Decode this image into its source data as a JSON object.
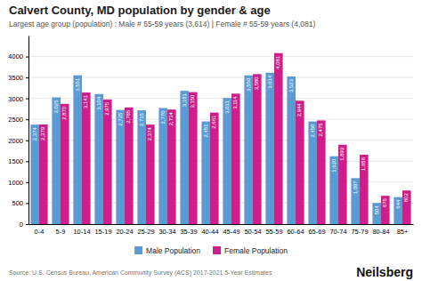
{
  "chart_data": {
    "type": "bar",
    "title": "Calvert County, MD population by gender & age",
    "subtitle": "Largest age group (population) : Male # 55-59 years (3,614) | Female # 55-59 years (4,081)",
    "annotations": [
      "Source: U.S. Census Bureau, American Community Survey (ACS) 2017-2021 5-Year Estimates",
      "Neilsberg"
    ],
    "categories": [
      "0-4",
      "5-9",
      "10-14",
      "15-19",
      "20-24",
      "25-29",
      "30-34",
      "35-39",
      "40-44",
      "45-49",
      "50-54",
      "55-59",
      "60-64",
      "65-69",
      "70-74",
      "75-79",
      "80-84",
      "85+"
    ],
    "series": [
      {
        "name": "Male Population",
        "color": "#5b9bd5",
        "values": [
          2374,
          3025,
          3551,
          3104,
          2725,
          2715,
          2770,
          3181,
          2451,
          3011,
          3550,
          3614,
          3523,
          2450,
          1620,
          1097,
          504,
          644
        ],
        "value_labels": [
          "2,374",
          "3,025",
          "3,551",
          "3,104",
          "2,725",
          "2,715",
          "2,770",
          "3,181",
          "2,451",
          "3,011",
          "3,550",
          "3,614",
          "3,523",
          "2,450",
          "1,620",
          "1,097",
          "504",
          "644"
        ]
      },
      {
        "name": "Female Population",
        "color": "#cc1f8a",
        "values": [
          2379,
          2870,
          3141,
          2975,
          2785,
          2374,
          2734,
          3150,
          2661,
          3114,
          3580,
          4081,
          2944,
          2475,
          1893,
          1656,
          676,
          802
        ],
        "value_labels": [
          "2,379",
          "2,870",
          "3,141",
          "2,975",
          "2,785",
          "2,374",
          "2,734",
          "3,150",
          "2,661",
          "3,114",
          "3,580",
          "4,081",
          "2,944",
          "2,475",
          "1,893",
          "1,656",
          "676",
          "802"
        ]
      }
    ],
    "ylim": [
      0,
      4500
    ],
    "yticks": [
      0,
      500,
      1000,
      1500,
      2000,
      2500,
      3000,
      3500,
      4000
    ],
    "grid": true,
    "legend": "bottom",
    "data_labels": true
  }
}
